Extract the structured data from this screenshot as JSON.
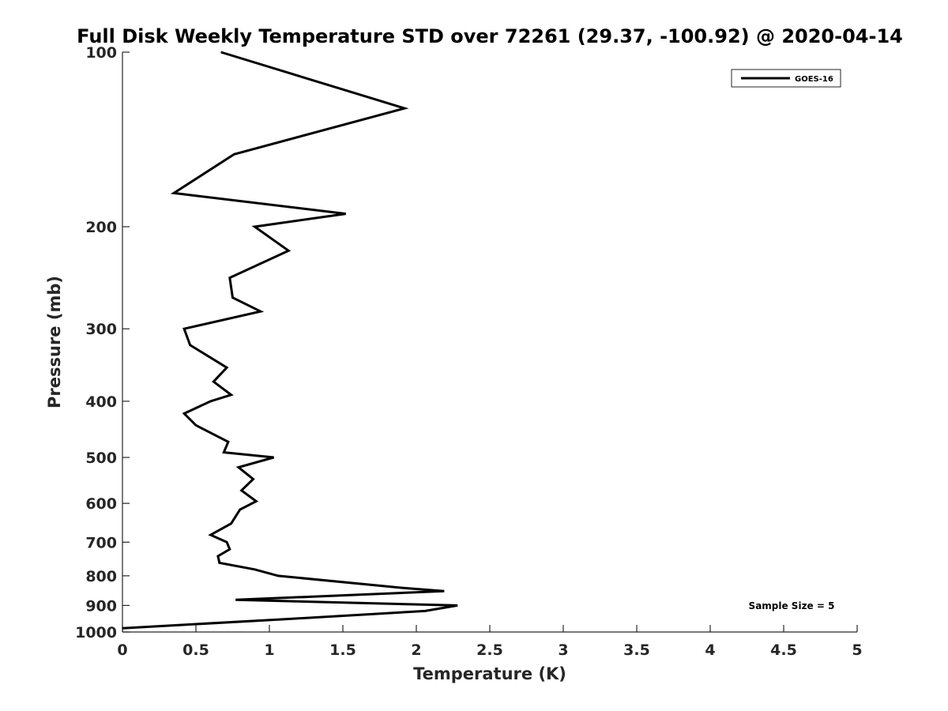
{
  "chart_data": {
    "type": "line",
    "title": "Full Disk Weekly Temperature STD over 72261 (29.37, -100.92) @ 2020-04-14",
    "xlabel": "Temperature (K)",
    "ylabel": "Pressure (mb)",
    "xlim": [
      0,
      5
    ],
    "ylim": [
      100,
      1000
    ],
    "yscale": "log",
    "yreversed": true,
    "grid": false,
    "xticks": [
      0,
      0.5,
      1,
      1.5,
      2,
      2.5,
      3,
      3.5,
      4,
      4.5,
      5
    ],
    "xtick_labels": [
      "0",
      "0.5",
      "1",
      "1.5",
      "2",
      "2.5",
      "3",
      "3.5",
      "4",
      "4.5",
      "5"
    ],
    "yticks": [
      100,
      200,
      300,
      400,
      500,
      600,
      700,
      800,
      900,
      1000
    ],
    "ytick_labels": [
      "100",
      "200",
      "300",
      "400",
      "500",
      "600",
      "700",
      "800",
      "900",
      "1000"
    ],
    "legend": {
      "position": "top-right",
      "entries": [
        "GOES-16"
      ]
    },
    "annotation": "Sample Size = 5",
    "series": [
      {
        "name": "GOES-16",
        "color": "#000000",
        "temperature": [
          0.67,
          1.92,
          0.76,
          0.35,
          1.52,
          0.9,
          1.13,
          0.73,
          0.75,
          0.94,
          0.42,
          0.46,
          0.71,
          0.62,
          0.74,
          0.6,
          0.42,
          0.5,
          0.72,
          0.69,
          1.03,
          0.79,
          0.89,
          0.81,
          0.91,
          0.8,
          0.74,
          0.6,
          0.71,
          0.73,
          0.65,
          0.66,
          0.9,
          1.06,
          1.92,
          2.19,
          0.77,
          2.28,
          2.06,
          1.12,
          0.0
        ],
        "pressure": [
          100,
          125,
          150,
          175,
          190,
          200,
          220,
          245,
          265,
          280,
          300,
          320,
          350,
          370,
          390,
          400,
          420,
          440,
          470,
          490,
          500,
          520,
          545,
          570,
          595,
          615,
          650,
          680,
          700,
          720,
          740,
          760,
          780,
          800,
          840,
          850,
          880,
          900,
          920,
          950,
          985
        ]
      }
    ]
  }
}
